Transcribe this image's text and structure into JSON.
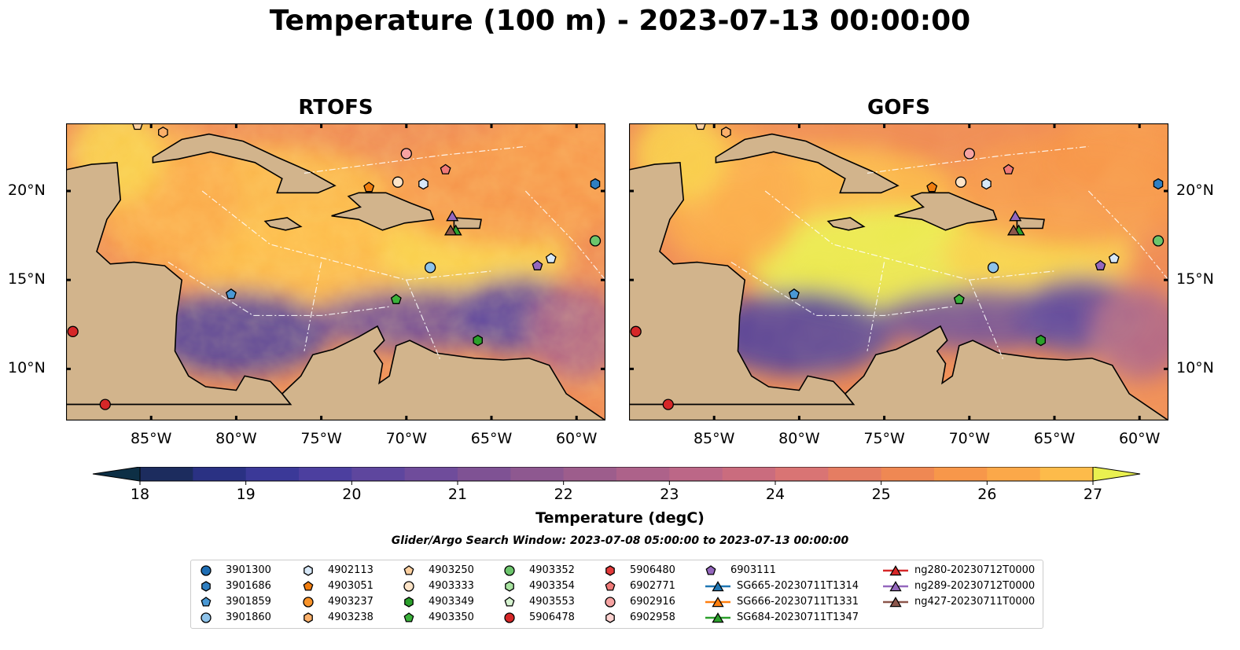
{
  "title": "Temperature (100 m) - 2023-07-13 00:00:00",
  "panels": [
    {
      "title": "RTOFS",
      "variant": "rtofs"
    },
    {
      "title": "GOFS",
      "variant": "gofs"
    }
  ],
  "lon_ticks": [
    "85°W",
    "80°W",
    "75°W",
    "70°W",
    "65°W",
    "60°W"
  ],
  "lat_ticks": [
    "20°N",
    "15°N",
    "10°N"
  ],
  "colorbar": {
    "label": "Temperature (degC)",
    "min": 18,
    "max": 27,
    "step": 0.5,
    "ticks": [
      "18",
      "19",
      "20",
      "21",
      "22",
      "23",
      "24",
      "25",
      "26",
      "27"
    ],
    "colors": [
      "#0d2f45",
      "#1c2c5e",
      "#2a3183",
      "#3b3998",
      "#4c3f9f",
      "#5e469e",
      "#6f4c9b",
      "#7f5294",
      "#8e5890",
      "#9d5d8c",
      "#ad628a",
      "#bc6787",
      "#ca6c7e",
      "#d97474",
      "#e57d62",
      "#ef8853",
      "#f7974a",
      "#fba849",
      "#fdbb4a",
      "#f9d24c",
      "#e9f050"
    ]
  },
  "search_window": "Glider/Argo Search Window: 2023-07-08 05:00:00 to 2023-07-13 00:00:00",
  "colors": {
    "land": "#d2b48c",
    "shelf": "#a9c4e8",
    "deep": "#0f2537"
  },
  "legend": [
    {
      "label": "3901300",
      "shape": "circle",
      "color": "#1f6eb4"
    },
    {
      "label": "3901686",
      "shape": "hexagon",
      "color": "#2f7fc1"
    },
    {
      "label": "3901859",
      "shape": "pentagon",
      "color": "#4a98d4"
    },
    {
      "label": "3901860",
      "shape": "circle",
      "color": "#8ec3ea"
    },
    {
      "label": "4902113",
      "shape": "hexagon",
      "color": "#d7e8f8"
    },
    {
      "label": "4903051",
      "shape": "pentagon",
      "color": "#f07d0f"
    },
    {
      "label": "4903237",
      "shape": "circle",
      "color": "#f8932a"
    },
    {
      "label": "4903238",
      "shape": "hexagon",
      "color": "#fbb06a"
    },
    {
      "label": "4903250",
      "shape": "pentagon",
      "color": "#fdd0a0"
    },
    {
      "label": "4903333",
      "shape": "circle",
      "color": "#fde4c8"
    },
    {
      "label": "4903349",
      "shape": "hexagon",
      "color": "#2ba02b"
    },
    {
      "label": "4903350",
      "shape": "pentagon",
      "color": "#3bb13b"
    },
    {
      "label": "4903352",
      "shape": "circle",
      "color": "#6cc56c"
    },
    {
      "label": "4903354",
      "shape": "hexagon",
      "color": "#a8e3a0"
    },
    {
      "label": "4903553",
      "shape": "pentagon",
      "color": "#d6f3d0"
    },
    {
      "label": "5906478",
      "shape": "circle",
      "color": "#d62728"
    },
    {
      "label": "5906480",
      "shape": "hexagon",
      "color": "#e33a3a"
    },
    {
      "label": "6902771",
      "shape": "pentagon",
      "color": "#f07a78"
    },
    {
      "label": "6902916",
      "shape": "circle",
      "color": "#f6a3a2"
    },
    {
      "label": "6902958",
      "shape": "hexagon",
      "color": "#fdd2d0"
    },
    {
      "label": "6903111",
      "shape": "pentagon",
      "color": "#9467bd"
    },
    {
      "label": "SG665-20230711T1314",
      "shape": "triangle",
      "color": "#1f77b4"
    },
    {
      "label": "SG666-20230711T1331",
      "shape": "triangle",
      "color": "#ff7f0e"
    },
    {
      "label": "SG684-20230711T1347",
      "shape": "triangle",
      "color": "#2ca02c"
    },
    {
      "label": "ng280-20230712T0000",
      "shape": "triangle",
      "color": "#d62728"
    },
    {
      "label": "ng289-20230712T0000",
      "shape": "triangle",
      "color": "#9467bd"
    },
    {
      "label": "ng427-20230711T0000",
      "shape": "triangle",
      "color": "#8c564b"
    }
  ]
}
